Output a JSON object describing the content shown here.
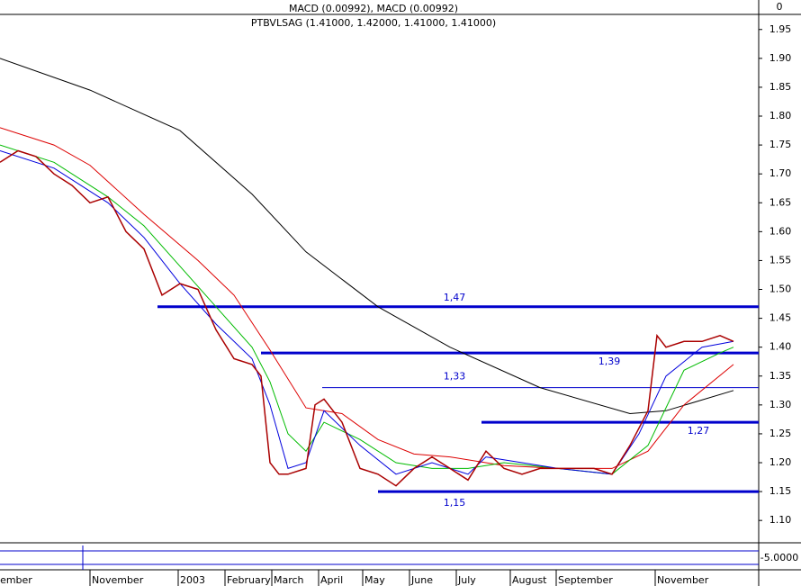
{
  "chart_data": {
    "type": "line",
    "title": "PTBVLSAG (1.41000, 1.42000, 1.41000, 1.41000)",
    "subtitle": "MACD (0.00992), MACD (0.00992)",
    "macd_axis_label": "0",
    "oscillator_axis_label": "-5.0000",
    "xlim": [
      0,
      168.6
    ],
    "ylim": [
      1.066,
      1.973
    ],
    "xticks": [
      {
        "value": -4,
        "label": "eptember"
      },
      {
        "value": 20,
        "label": "November"
      },
      {
        "value": 39.6,
        "label": "2003"
      },
      {
        "value": 50,
        "label": "February"
      },
      {
        "value": 60.4,
        "label": "March"
      },
      {
        "value": 70.8,
        "label": "April"
      },
      {
        "value": 80.6,
        "label": "May"
      },
      {
        "value": 91,
        "label": "June"
      },
      {
        "value": 101.4,
        "label": "July"
      },
      {
        "value": 113.4,
        "label": "August"
      },
      {
        "value": 123.6,
        "label": "September"
      },
      {
        "value": 145.6,
        "label": "November"
      }
    ],
    "yticks": [
      {
        "value": 1.1,
        "label": "1.10"
      },
      {
        "value": 1.15,
        "label": "1.15"
      },
      {
        "value": 1.2,
        "label": "1.20"
      },
      {
        "value": 1.25,
        "label": "1.25"
      },
      {
        "value": 1.3,
        "label": "1.30"
      },
      {
        "value": 1.35,
        "label": "1.35"
      },
      {
        "value": 1.4,
        "label": "1.40"
      },
      {
        "value": 1.45,
        "label": "1.45"
      },
      {
        "value": 1.5,
        "label": "1.50"
      },
      {
        "value": 1.55,
        "label": "1.55"
      },
      {
        "value": 1.6,
        "label": "1.60"
      },
      {
        "value": 1.65,
        "label": "1.65"
      },
      {
        "value": 1.7,
        "label": "1.70"
      },
      {
        "value": 1.75,
        "label": "1.75"
      },
      {
        "value": 1.8,
        "label": "1.80"
      },
      {
        "value": 1.85,
        "label": "1.85"
      },
      {
        "value": 1.9,
        "label": "1.90"
      },
      {
        "value": 1.95,
        "label": "1.95"
      }
    ],
    "series": [
      {
        "color": "#000000",
        "width": 1,
        "x": [
          0,
          20,
          40,
          56,
          68,
          84,
          100,
          120,
          140,
          148,
          163
        ],
        "values": [
          1.9,
          1.845,
          1.775,
          1.665,
          1.565,
          1.47,
          1.4,
          1.33,
          1.285,
          1.29,
          1.325
        ]
      },
      {
        "color": "#dd0000",
        "width": 1,
        "x": [
          0,
          12,
          20,
          32,
          44,
          52,
          60,
          68,
          76,
          84,
          92,
          100,
          112,
          124,
          136,
          144,
          152,
          163
        ],
        "values": [
          1.78,
          1.75,
          1.715,
          1.63,
          1.55,
          1.49,
          1.395,
          1.295,
          1.285,
          1.24,
          1.215,
          1.21,
          1.195,
          1.19,
          1.19,
          1.22,
          1.3,
          1.37
        ]
      },
      {
        "color": "#00bb00",
        "width": 1,
        "x": [
          0,
          12,
          24,
          32,
          40,
          48,
          56,
          60,
          64,
          68,
          72,
          80,
          88,
          96,
          104,
          112,
          124,
          136,
          144,
          152,
          160,
          163
        ],
        "values": [
          1.75,
          1.72,
          1.66,
          1.61,
          1.54,
          1.47,
          1.4,
          1.34,
          1.25,
          1.22,
          1.27,
          1.24,
          1.2,
          1.19,
          1.19,
          1.2,
          1.19,
          1.18,
          1.23,
          1.36,
          1.39,
          1.4
        ]
      },
      {
        "color": "#0000dd",
        "width": 1,
        "x": [
          0,
          12,
          24,
          32,
          40,
          48,
          56,
          60,
          64,
          68,
          72,
          80,
          88,
          96,
          104,
          108,
          124,
          136,
          142,
          148,
          156,
          163
        ],
        "values": [
          1.74,
          1.71,
          1.65,
          1.59,
          1.51,
          1.44,
          1.38,
          1.3,
          1.19,
          1.2,
          1.29,
          1.23,
          1.18,
          1.2,
          1.18,
          1.21,
          1.19,
          1.18,
          1.25,
          1.35,
          1.4,
          1.41
        ]
      },
      {
        "color": "#aa0000",
        "width": 1.5,
        "x": [
          0,
          4,
          8,
          12,
          16,
          20,
          24,
          28,
          32,
          36,
          40,
          44,
          48,
          52,
          56,
          58,
          60,
          62,
          64,
          68,
          70,
          72,
          76,
          80,
          84,
          88,
          92,
          96,
          100,
          104,
          108,
          112,
          116,
          120,
          124,
          128,
          132,
          136,
          140,
          144,
          146,
          148,
          152,
          156,
          160,
          163
        ],
        "values": [
          1.72,
          1.74,
          1.73,
          1.7,
          1.68,
          1.65,
          1.66,
          1.6,
          1.57,
          1.49,
          1.51,
          1.5,
          1.43,
          1.38,
          1.37,
          1.35,
          1.2,
          1.18,
          1.18,
          1.19,
          1.3,
          1.31,
          1.27,
          1.19,
          1.18,
          1.16,
          1.19,
          1.21,
          1.19,
          1.17,
          1.22,
          1.19,
          1.18,
          1.19,
          1.19,
          1.19,
          1.19,
          1.18,
          1.23,
          1.29,
          1.42,
          1.4,
          1.41,
          1.41,
          1.42,
          1.41
        ]
      }
    ],
    "levels": [
      {
        "value": 1.47,
        "label": "1,47",
        "x0": 35,
        "label_x": 101,
        "width": 3
      },
      {
        "value": 1.39,
        "label": "1,39",
        "x0": 58,
        "label_x": 135.4,
        "width": 3
      },
      {
        "value": 1.33,
        "label": "1,33",
        "x0": 71.6,
        "label_x": 101,
        "width": 1
      },
      {
        "value": 1.27,
        "label": "1,27",
        "x0": 107,
        "label_x": 155.2,
        "width": 3
      },
      {
        "value": 1.15,
        "label": "1,15",
        "x0": 84,
        "label_x": 101,
        "width": 3
      }
    ]
  }
}
